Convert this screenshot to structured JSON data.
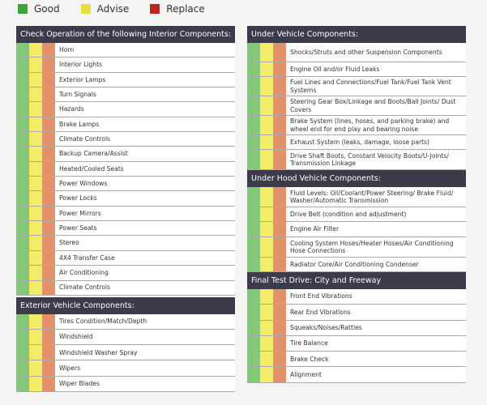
{
  "legend": [
    {
      "label": "Good",
      "color": "#3aa63a"
    },
    {
      "label": "Advise",
      "color": "#e8e03a"
    },
    {
      "label": "Replace",
      "color": "#b8261e"
    }
  ],
  "colors": {
    "good": "#84c77a",
    "advise": "#f3ec69",
    "replace": "#e3916a",
    "header": "#3b3b4a"
  },
  "sections": [
    {
      "title": "Check Operation of the following Interior Components:",
      "items": [
        "Horn",
        "Interior Lights",
        "Exterior Lamps",
        "Turn Signals",
        "Hazards",
        "Brake Lamps",
        "Climate Controls",
        "Backup Camera/Assist",
        "Heated/Cooled Seats",
        "Power Windows",
        "Power Locks",
        "Power Mirrors",
        "Power Seats",
        "Stereo",
        "4X4 Transfer Case",
        "Air Conditioning",
        "Climate Controls"
      ]
    },
    {
      "title": "Exterior Vehicle Components:",
      "items": [
        "Tires Condition/Match/Depth",
        "Windshield",
        "Windshield Washer Spray",
        "Wipers",
        "Wiper Blades"
      ]
    },
    {
      "title": "Under Vehicle Components:",
      "items": [
        "Shocks/Struts and other Suspension Components",
        "Engine Oil and/or Fluid Leaks",
        "Fuel Lines and Connections/Fuel Tank/Fuel Tank Vent Systems",
        "Steering Gear Box/Linkage and Boots/Ball Joints/ Dust Covers",
        "Brake System (lines, hoses, and parking brake) and wheel end for end play and bearing noise",
        "Exhaust System (leaks, damage, loose parts)",
        "Drive Shaft Boots, Constant Velocity Boots/U-Joints/ Transmission Linkage"
      ]
    },
    {
      "title": "Under Hood Vehicle Components:",
      "items": [
        "Fluid Levels: Oil/Coolant/Power Steering/ Brake Fluid/ Washer/Automatic Transmission",
        "Drive Belt (condition and adjustment)",
        "Engine Air Filter",
        "Cooling System Hoses/Heater Hoses/Air Conditioning Hose Connections",
        "Radiator Core/Air Conditioning Condenser"
      ]
    },
    {
      "title": "Final Test Drive: City and Freeway",
      "items": [
        "Front End Vibrations",
        "Rear End Vibrations",
        "Squeaks/Noises/Rattles",
        "Tire Balance",
        "Brake Check",
        "Alignment"
      ]
    }
  ]
}
